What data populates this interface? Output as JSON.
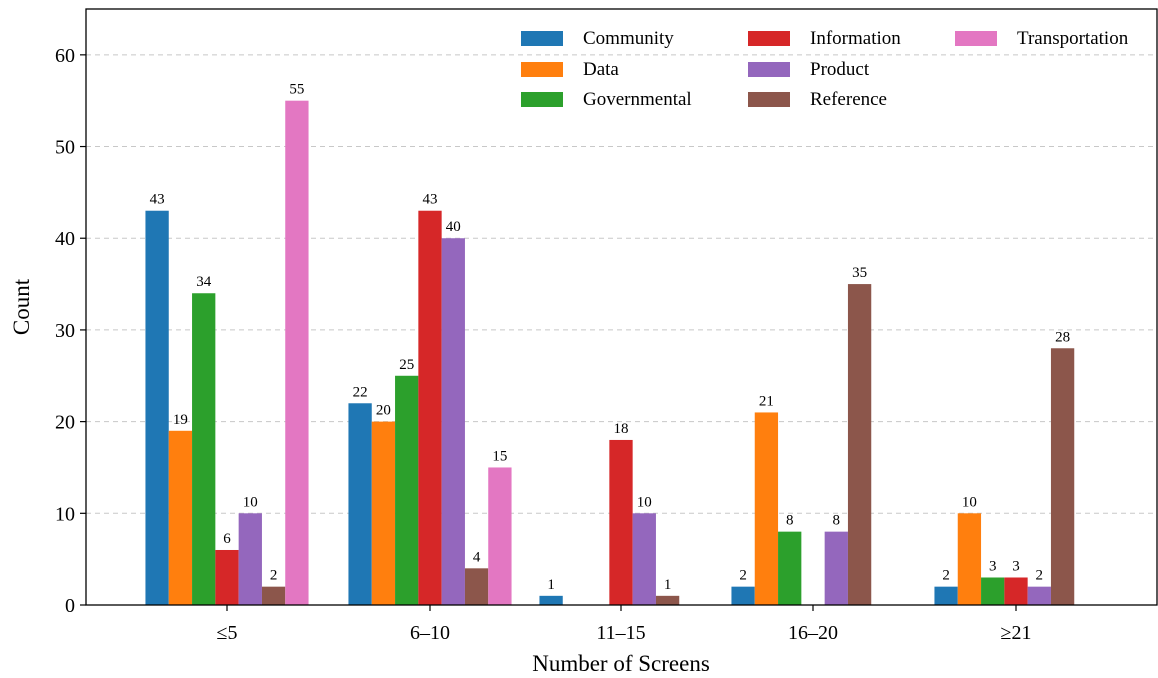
{
  "chart_data": {
    "type": "bar",
    "xlabel": "Number of Screens",
    "ylabel": "Count",
    "ylim": [
      0,
      65
    ],
    "yticks": [
      0,
      10,
      20,
      30,
      40,
      50,
      60
    ],
    "grid": "y-dashed",
    "legend_position": "top-right",
    "categories": [
      "≤5",
      "6–10",
      "11–15",
      "16–20",
      "≥21"
    ],
    "series": [
      {
        "name": "Community",
        "color": "#1f77b4",
        "values": [
          43,
          22,
          1,
          2,
          2
        ]
      },
      {
        "name": "Data",
        "color": "#ff7f0e",
        "values": [
          19,
          20,
          0,
          21,
          10
        ]
      },
      {
        "name": "Governmental",
        "color": "#2ca02c",
        "values": [
          34,
          25,
          0,
          8,
          3
        ]
      },
      {
        "name": "Information",
        "color": "#d62728",
        "values": [
          6,
          43,
          18,
          0,
          3
        ]
      },
      {
        "name": "Product",
        "color": "#9467bd",
        "values": [
          10,
          40,
          10,
          8,
          2
        ]
      },
      {
        "name": "Reference",
        "color": "#8c564b",
        "values": [
          2,
          4,
          1,
          35,
          28
        ]
      },
      {
        "name": "Transportation",
        "color": "#e377c2",
        "values": [
          55,
          15,
          0,
          0,
          0
        ]
      }
    ]
  }
}
